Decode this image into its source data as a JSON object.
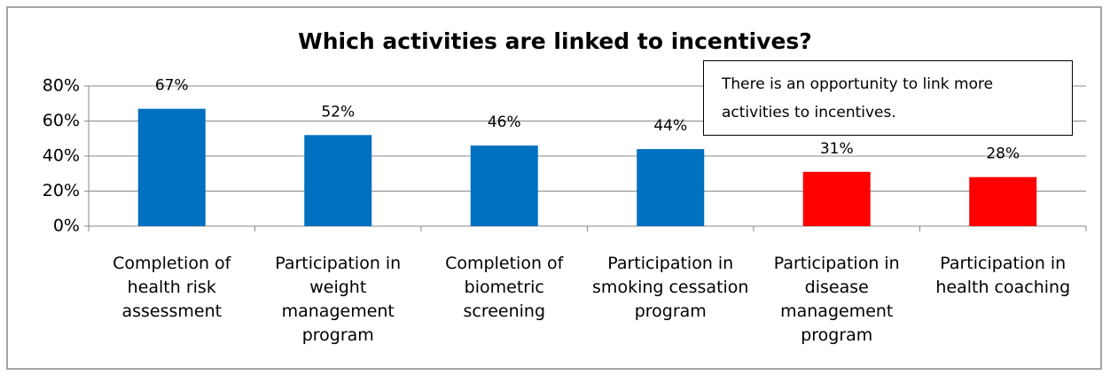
{
  "chart_data": {
    "type": "bar",
    "title": "Which activities are linked to incentives?",
    "annotation": "There is an opportunity to link more activities to incentives.",
    "categories": [
      "Completion of health risk assessment",
      "Participation in weight management program",
      "Completion of biometric screening",
      "Participation in smoking cessation program",
      "Participation in disease management program",
      "Participation in health coaching"
    ],
    "values": [
      67,
      52,
      46,
      44,
      31,
      28
    ],
    "value_labels": [
      "67%",
      "52%",
      "46%",
      "44%",
      "31%",
      "28%"
    ],
    "colors": [
      "#0070c0",
      "#0070c0",
      "#0070c0",
      "#0070c0",
      "#ff0000",
      "#ff0000"
    ],
    "ylim": [
      0,
      80
    ],
    "yticks": [
      {
        "value": 0,
        "label": "0%"
      },
      {
        "value": 20,
        "label": "20%"
      },
      {
        "value": 40,
        "label": "40%"
      },
      {
        "value": 60,
        "label": "60%"
      },
      {
        "value": 80,
        "label": "80%"
      }
    ],
    "grid": true
  }
}
